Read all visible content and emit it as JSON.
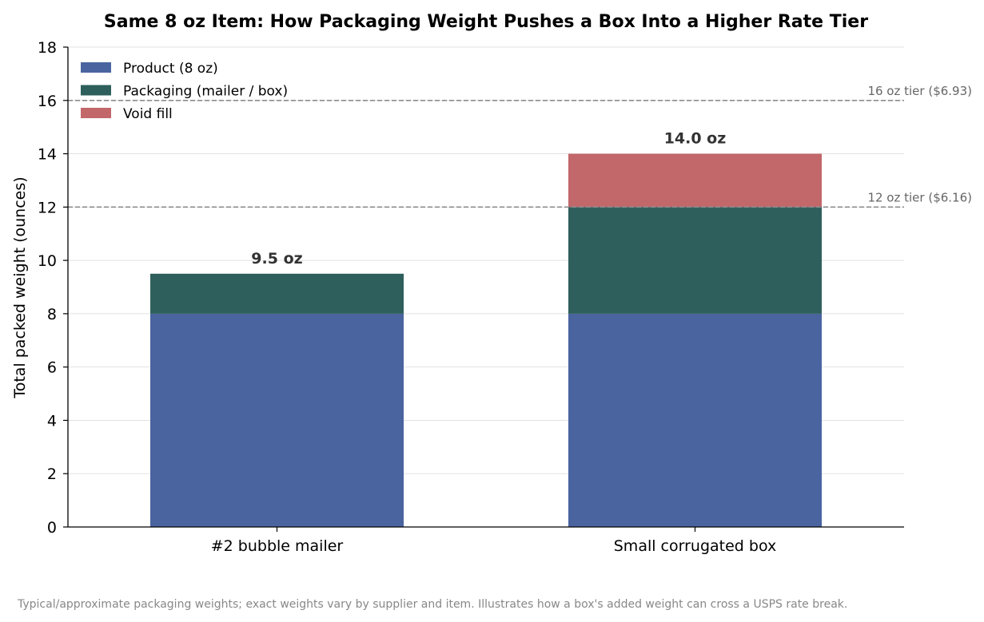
{
  "chart_data": {
    "type": "bar",
    "stacked": true,
    "title": "Same 8 oz Item: How Packaging Weight Pushes a Box Into a Higher Rate Tier",
    "xlabel": "",
    "ylabel": "Total packed weight (ounces)",
    "ylim": [
      0,
      18
    ],
    "yticks": [
      0,
      2,
      4,
      6,
      8,
      10,
      12,
      14,
      16,
      18
    ],
    "categories": [
      "#2 bubble mailer",
      "Small corrugated box"
    ],
    "series": [
      {
        "name": "Product (8 oz)",
        "values": [
          8,
          8
        ],
        "color": "#4a64a0"
      },
      {
        "name": "Packaging (mailer / box)",
        "values": [
          1.5,
          4
        ],
        "color": "#2e5f5c"
      },
      {
        "name": "Void fill",
        "values": [
          0,
          2
        ],
        "color": "#c2676a"
      }
    ],
    "totals": [
      {
        "value": 9.5,
        "label": "9.5 oz"
      },
      {
        "value": 14.0,
        "label": "14.0 oz"
      }
    ],
    "reference_lines": [
      {
        "value": 16,
        "label": "16 oz tier ($6.93)"
      },
      {
        "value": 12,
        "label": "12 oz tier ($6.16)"
      }
    ],
    "grid": "y",
    "legend_position": "top-left",
    "footnote": "Typical/approximate packaging weights; exact weights vary by supplier and item. Illustrates how a box's added weight can cross a USPS rate break."
  }
}
